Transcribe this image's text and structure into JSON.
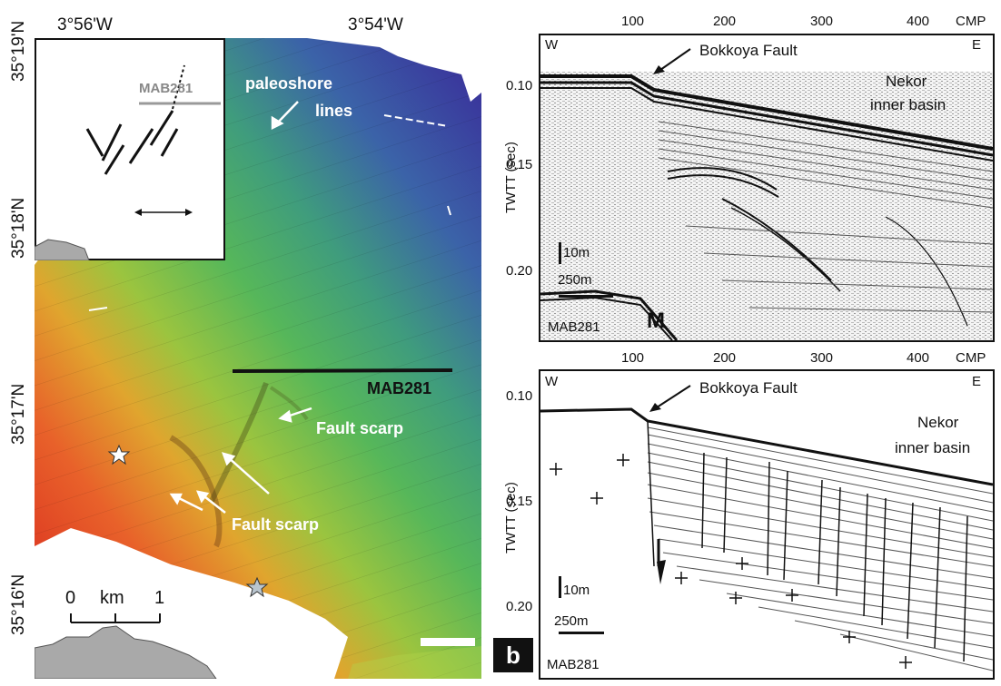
{
  "map": {
    "lon_labels": [
      "3°56'W",
      "3°54'W"
    ],
    "lat_labels": [
      "35°19'N",
      "35°18'N",
      "35°17'N",
      "35°16'N"
    ],
    "paleoshore_label": "paleoshore lines",
    "paleoshore_label_line1": "paleoshore",
    "paleoshore_label_line2": "lines",
    "profile_label": "MAB281",
    "fault_scarp_label_1": "Fault scarp",
    "fault_scarp_label_2": "Fault scarp",
    "scale_bar": {
      "left": "0",
      "unit": "km",
      "right": "1"
    },
    "inset": {
      "profile_label": "MAB281"
    },
    "colors": {
      "deep": "#3a3fa0",
      "mid": "#4fb560",
      "shallow": "#e23b22",
      "land": "#ffffff"
    }
  },
  "panel_b_tag": "b",
  "seismic_top": {
    "cmp_ticks": [
      "100",
      "200",
      "300",
      "400"
    ],
    "cmp_label": "CMP",
    "twtt_ticks": [
      "0.10",
      "0.15",
      "0.20"
    ],
    "axis_label": "TWTT (sec)",
    "west": "W",
    "east": "E",
    "fault_label": "Bokkoya Fault",
    "basin_label_line1": "Nekor",
    "basin_label_line2": "inner basin",
    "vscale": "10m",
    "hscale": "250m",
    "profile": "MAB281",
    "multiple_label": "M"
  },
  "seismic_bottom": {
    "cmp_ticks": [
      "100",
      "200",
      "300",
      "400"
    ],
    "cmp_label": "CMP",
    "twtt_ticks": [
      "0.10",
      "0.15",
      "0.20"
    ],
    "axis_label": "TWTT (sec)",
    "west": "W",
    "east": "E",
    "fault_label": "Bokkoya Fault",
    "basin_label_line1": "Nekor",
    "basin_label_line2": "inner basin",
    "vscale": "10m",
    "hscale": "250m",
    "profile": "MAB281"
  }
}
